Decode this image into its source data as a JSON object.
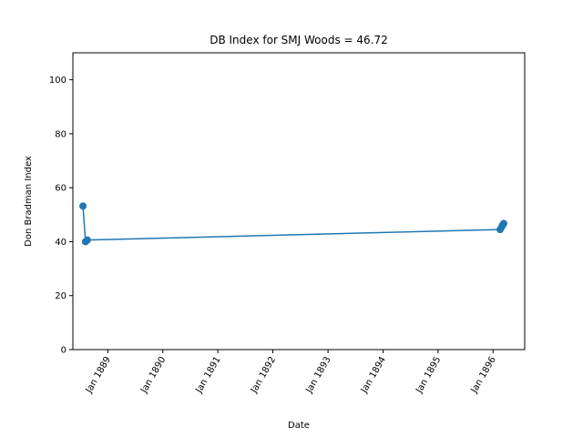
{
  "chart_data": {
    "type": "line",
    "title": "DB Index for SMJ Woods = 46.72",
    "xlabel": "Date",
    "ylabel": "Don Bradman Index",
    "series_color": "#1f77b4",
    "ylim": [
      0,
      110
    ],
    "xlim": [
      "1888-05-14",
      "1896-07-29"
    ],
    "yticks": [
      0,
      20,
      40,
      60,
      80,
      100
    ],
    "xticks": [
      {
        "date": "1889-01-01",
        "label": "Jan 1889"
      },
      {
        "date": "1890-01-01",
        "label": "Jan 1890"
      },
      {
        "date": "1891-01-01",
        "label": "Jan 1891"
      },
      {
        "date": "1892-01-01",
        "label": "Jan 1892"
      },
      {
        "date": "1893-01-01",
        "label": "Jan 1893"
      },
      {
        "date": "1894-01-01",
        "label": "Jan 1894"
      },
      {
        "date": "1895-01-01",
        "label": "Jan 1895"
      },
      {
        "date": "1896-01-01",
        "label": "Jan 1896"
      }
    ],
    "grid": false,
    "marker": "circle",
    "points": [
      {
        "x": "1888-07-20",
        "y": 53.2
      },
      {
        "x": "1888-08-06",
        "y": 40.0
      },
      {
        "x": "1888-08-18",
        "y": 40.6
      },
      {
        "x": "1896-02-17",
        "y": 44.5
      },
      {
        "x": "1896-02-28",
        "y": 45.5
      },
      {
        "x": "1896-03-06",
        "y": 46.3
      },
      {
        "x": "1896-03-12",
        "y": 46.72
      }
    ]
  }
}
